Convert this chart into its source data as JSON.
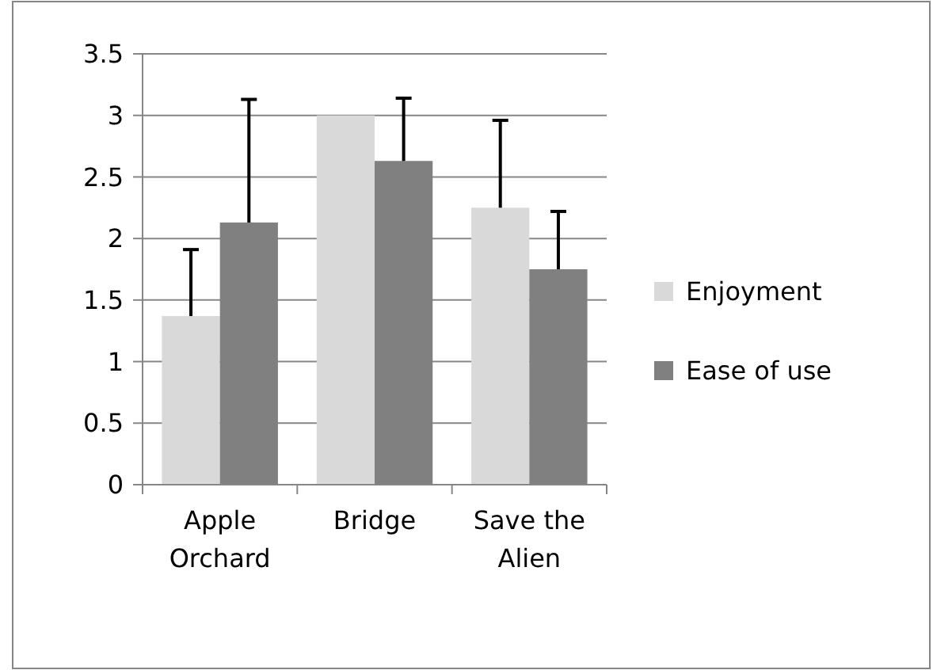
{
  "chart_data": {
    "type": "bar",
    "categories": [
      "Apple Orchard",
      "Bridge",
      "Save the Alien"
    ],
    "series": [
      {
        "name": "Enjoyment",
        "color": "#d9d9d9",
        "values": [
          1.37,
          3.0,
          2.25
        ],
        "errors": [
          [
            1.37,
            1.91
          ],
          null,
          [
            2.25,
            2.96
          ]
        ]
      },
      {
        "name": "Ease of use",
        "color": "#808080",
        "values": [
          2.13,
          2.63,
          1.75
        ],
        "errors": [
          [
            2.13,
            3.13
          ],
          [
            2.63,
            3.14
          ],
          [
            1.75,
            2.22
          ]
        ]
      }
    ],
    "ylim": [
      0,
      3.5
    ],
    "yticks": [
      0,
      0.5,
      1,
      1.5,
      2,
      2.5,
      3,
      3.5
    ],
    "grid": "y",
    "legend": "right"
  }
}
